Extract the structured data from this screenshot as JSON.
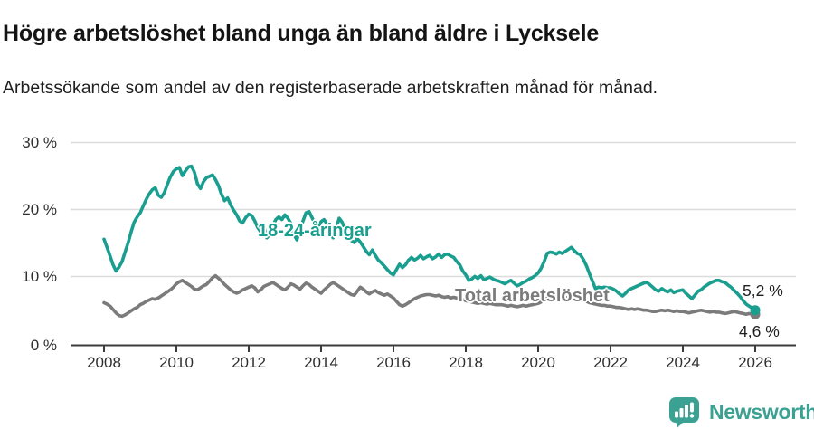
{
  "page": {
    "title": "Högre arbetslöshet bland unga än bland äldre i Lycksele",
    "subtitle": "Arbetssökande som andel av den registerbaserade arbetskraften månad för månad."
  },
  "chart_data": {
    "type": "line",
    "title": "Högre arbetslöshet bland unga än bland äldre i Lycksele",
    "subtitle": "Arbetssökande som andel av den registerbaserade arbetskraften månad för månad.",
    "unit": "%",
    "grid": "horizontal",
    "legend_position": "inline-labels-on-lines",
    "x_start_year": 2008,
    "x_resolution": "monthly",
    "ylim": [
      0,
      32
    ],
    "y_tick_labels": [
      "30 %",
      "20 %",
      "10 %",
      "0 %"
    ],
    "x_tick_labels": [
      "2008",
      "2010",
      "2012",
      "2014",
      "2016",
      "2018",
      "2020",
      "2022",
      "2024",
      "2026"
    ],
    "series": [
      {
        "name": "18-24-åringar",
        "color": "#1a9e8f",
        "end_label": "5,2 %",
        "end_value": 5.2,
        "values_monthly": [
          15.7,
          14.5,
          13.2,
          11.9,
          11.0,
          11.6,
          12.4,
          13.8,
          15.2,
          16.8,
          18.2,
          19.0,
          19.6,
          20.6,
          21.6,
          22.4,
          23.0,
          23.3,
          22.2,
          21.9,
          22.6,
          23.8,
          24.9,
          25.7,
          26.1,
          26.3,
          25.1,
          25.8,
          26.4,
          26.5,
          25.6,
          23.9,
          23.2,
          24.2,
          24.8,
          25.0,
          25.2,
          24.5,
          23.6,
          22.3,
          21.4,
          21.8,
          20.8,
          20.0,
          19.3,
          18.4,
          18.1,
          18.9,
          19.4,
          19.2,
          18.4,
          17.4,
          16.8,
          17.9,
          15.9,
          16.4,
          17.8,
          18.6,
          19.0,
          18.6,
          19.3,
          18.8,
          18.0,
          16.4,
          15.6,
          17.2,
          18.4,
          19.6,
          19.8,
          18.9,
          18.0,
          17.3,
          18.3,
          18.6,
          17.9,
          16.8,
          15.9,
          17.3,
          18.8,
          18.2,
          17.1,
          16.2,
          15.5,
          15.2,
          15.8,
          15.3,
          14.6,
          13.9,
          13.4,
          14.1,
          13.3,
          12.6,
          12.2,
          11.7,
          11.2,
          10.7,
          10.4,
          11.2,
          12.0,
          11.5,
          11.9,
          12.6,
          13.0,
          12.6,
          12.9,
          13.3,
          12.8,
          13.1,
          13.3,
          12.8,
          13.1,
          13.5,
          13.0,
          13.4,
          13.5,
          13.2,
          13.0,
          12.4,
          11.9,
          11.0,
          10.4,
          9.6,
          9.8,
          10.2,
          9.9,
          10.3,
          9.7,
          9.9,
          10.1,
          9.8,
          9.6,
          9.5,
          9.3,
          9.1,
          9.4,
          9.6,
          9.2,
          8.8,
          9.0,
          9.3,
          9.5,
          9.8,
          10.0,
          10.3,
          10.7,
          11.4,
          12.4,
          13.6,
          13.8,
          13.7,
          13.5,
          13.8,
          13.6,
          13.9,
          14.2,
          14.5,
          14.0,
          13.6,
          13.4,
          12.7,
          11.8,
          10.6,
          9.5,
          8.4,
          8.6,
          8.5,
          8.6,
          8.5,
          8.5,
          8.3,
          8.0,
          7.6,
          7.3,
          7.7,
          8.2,
          8.4,
          8.6,
          8.8,
          9.0,
          9.2,
          9.3,
          9.0,
          8.6,
          8.2,
          8.0,
          8.4,
          8.1,
          7.9,
          8.2,
          7.8,
          8.0,
          8.1,
          8.2,
          7.7,
          7.3,
          6.9,
          7.4,
          8.0,
          8.2,
          8.6,
          8.9,
          9.2,
          9.4,
          9.6,
          9.6,
          9.4,
          9.3,
          8.9,
          8.6,
          8.1,
          7.7,
          7.2,
          6.6,
          6.1,
          5.8,
          5.5,
          5.2
        ]
      },
      {
        "name": "Total arbetslöshet",
        "color": "#7b7b7b",
        "end_label": "4,6 %",
        "end_value": 4.6,
        "values_monthly": [
          6.3,
          6.1,
          5.8,
          5.3,
          4.8,
          4.4,
          4.3,
          4.5,
          4.8,
          5.1,
          5.4,
          5.6,
          6.0,
          6.2,
          6.5,
          6.7,
          6.9,
          6.8,
          7.0,
          7.3,
          7.6,
          7.9,
          8.2,
          8.6,
          9.1,
          9.4,
          9.6,
          9.3,
          9.0,
          8.7,
          8.3,
          8.2,
          8.5,
          8.8,
          9.0,
          9.5,
          10.0,
          10.3,
          9.9,
          9.5,
          9.0,
          8.6,
          8.2,
          7.9,
          7.7,
          7.9,
          8.2,
          8.4,
          8.6,
          8.8,
          8.5,
          7.9,
          8.2,
          8.7,
          8.9,
          9.1,
          9.3,
          9.0,
          8.7,
          8.4,
          8.2,
          8.6,
          9.1,
          8.9,
          8.6,
          8.3,
          8.8,
          9.2,
          9.0,
          8.6,
          8.3,
          8.0,
          7.7,
          8.2,
          8.6,
          9.0,
          9.3,
          9.0,
          8.7,
          8.4,
          8.1,
          7.8,
          7.5,
          7.4,
          8.0,
          8.6,
          8.3,
          7.9,
          7.6,
          7.9,
          8.1,
          7.8,
          7.6,
          7.4,
          7.6,
          7.3,
          7.0,
          6.5,
          6.0,
          5.8,
          6.0,
          6.3,
          6.6,
          6.9,
          7.1,
          7.3,
          7.4,
          7.5,
          7.5,
          7.4,
          7.3,
          7.4,
          7.2,
          7.1,
          7.2,
          7.0,
          7.1,
          7.0,
          6.9,
          6.8,
          6.6,
          6.5,
          6.4,
          6.3,
          6.2,
          6.3,
          6.2,
          6.1,
          6.2,
          6.1,
          6.0,
          6.0,
          6.0,
          5.9,
          5.8,
          5.9,
          5.8,
          5.7,
          5.8,
          5.9,
          5.8,
          5.9,
          6.0,
          6.1,
          6.2,
          6.4,
          6.7,
          7.0,
          7.1,
          7.2,
          7.1,
          7.2,
          7.1,
          7.0,
          7.1,
          7.0,
          7.0,
          6.9,
          6.8,
          6.6,
          6.5,
          6.3,
          6.2,
          6.1,
          6.0,
          5.9,
          5.9,
          5.8,
          5.8,
          5.7,
          5.6,
          5.6,
          5.5,
          5.4,
          5.3,
          5.4,
          5.3,
          5.4,
          5.3,
          5.2,
          5.2,
          5.1,
          5.0,
          5.0,
          5.1,
          5.2,
          5.1,
          5.2,
          5.1,
          5.0,
          5.1,
          5.0,
          5.0,
          4.9,
          4.8,
          4.9,
          5.0,
          5.1,
          5.2,
          5.1,
          5.0,
          4.9,
          5.0,
          4.9,
          4.9,
          4.8,
          4.7,
          4.8,
          4.9,
          5.0,
          4.9,
          4.8,
          4.7,
          4.6,
          4.7,
          4.6,
          4.6
        ]
      }
    ]
  },
  "footer": {
    "brand": "Newsworthy"
  },
  "colors": {
    "youth_line": "#1a9e8f",
    "total_line": "#7b7b7b",
    "gridline": "#dcdcdc",
    "axis": "#3c3c3c",
    "brand_teal": "#3ba293"
  }
}
